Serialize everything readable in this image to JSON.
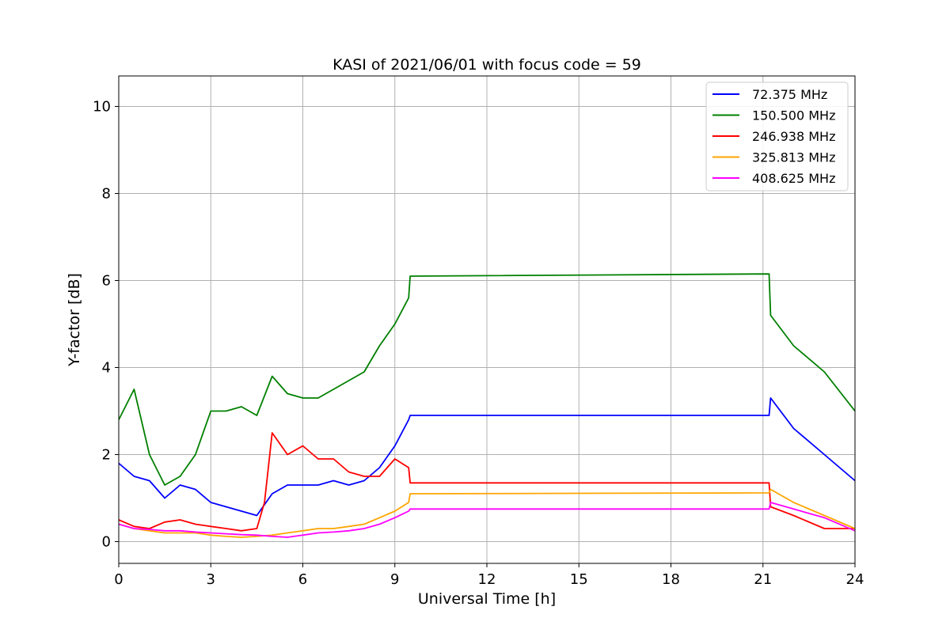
{
  "chart_data": {
    "type": "line",
    "title": "KASI of 2021/06/01 with focus code = 59",
    "xlabel": "Universal Time [h]",
    "ylabel": "Y-factor [dB]",
    "xlim": [
      0,
      24
    ],
    "ylim": [
      -0.5,
      10.7
    ],
    "xticks": [
      0,
      3,
      6,
      9,
      12,
      15,
      18,
      21,
      24
    ],
    "yticks": [
      0,
      2,
      4,
      6,
      8,
      10
    ],
    "grid": true,
    "legend_position": "top-right",
    "series": [
      {
        "name": " 72.375 MHz",
        "color": "#0000ff",
        "x": [
          0,
          0.5,
          1,
          1.5,
          2,
          2.5,
          3,
          3.5,
          4,
          4.5,
          5,
          5.5,
          6,
          6.5,
          7,
          7.5,
          8,
          8.5,
          9,
          9.45,
          9.5,
          21.2,
          21.25,
          22,
          23,
          24
        ],
        "y": [
          1.8,
          1.5,
          1.4,
          1.0,
          1.3,
          1.2,
          0.9,
          0.8,
          0.7,
          0.6,
          1.1,
          1.3,
          1.3,
          1.3,
          1.4,
          1.3,
          1.4,
          1.7,
          2.2,
          2.8,
          2.9,
          2.9,
          3.3,
          2.6,
          2.0,
          1.4
        ]
      },
      {
        "name": "150.500 MHz",
        "color": "#008000",
        "x": [
          0,
          0.5,
          1,
          1.5,
          2,
          2.5,
          3,
          3.5,
          4,
          4.5,
          5,
          5.5,
          6,
          6.5,
          7,
          7.5,
          8,
          8.5,
          9,
          9.45,
          9.5,
          21.2,
          21.25,
          22,
          23,
          24
        ],
        "y": [
          2.8,
          3.5,
          2.0,
          1.3,
          1.5,
          2.0,
          3.0,
          3.0,
          3.1,
          2.9,
          3.8,
          3.4,
          3.3,
          3.3,
          3.5,
          3.7,
          3.9,
          4.5,
          5.0,
          5.6,
          6.1,
          6.15,
          5.2,
          4.5,
          3.9,
          3.0
        ]
      },
      {
        "name": "246.938 MHz",
        "color": "#ff0000",
        "x": [
          0,
          0.5,
          1,
          1.5,
          2,
          2.5,
          3,
          3.5,
          4,
          4.5,
          4.75,
          5,
          5.5,
          6,
          6.5,
          7,
          7.5,
          8,
          8.5,
          9,
          9.45,
          9.5,
          21.2,
          21.25,
          22,
          23,
          24
        ],
        "y": [
          0.5,
          0.35,
          0.3,
          0.45,
          0.5,
          0.4,
          0.35,
          0.3,
          0.25,
          0.3,
          0.9,
          2.5,
          2.0,
          2.2,
          1.9,
          1.9,
          1.6,
          1.5,
          1.5,
          1.9,
          1.7,
          1.35,
          1.35,
          0.8,
          0.6,
          0.3,
          0.3
        ]
      },
      {
        "name": "325.813 MHz",
        "color": "#ffa500",
        "x": [
          0,
          0.5,
          1,
          1.5,
          2,
          2.5,
          3,
          3.5,
          4,
          4.5,
          5,
          5.5,
          6,
          6.5,
          7,
          7.5,
          8,
          8.5,
          9,
          9.45,
          9.5,
          21.2,
          21.25,
          22,
          23,
          24
        ],
        "y": [
          0.4,
          0.3,
          0.25,
          0.2,
          0.2,
          0.2,
          0.15,
          0.12,
          0.1,
          0.12,
          0.15,
          0.2,
          0.25,
          0.3,
          0.3,
          0.35,
          0.4,
          0.55,
          0.7,
          0.9,
          1.1,
          1.12,
          1.2,
          0.9,
          0.6,
          0.3
        ]
      },
      {
        "name": "408.625 MHz",
        "color": "#ff00ff",
        "x": [
          0,
          0.5,
          1,
          1.5,
          2,
          2.5,
          3,
          3.5,
          4,
          4.5,
          5,
          5.5,
          6,
          6.5,
          7,
          7.5,
          8,
          8.5,
          9,
          9.45,
          9.5,
          21.2,
          21.25,
          22,
          23,
          24
        ],
        "y": [
          0.4,
          0.3,
          0.28,
          0.25,
          0.25,
          0.22,
          0.2,
          0.18,
          0.16,
          0.15,
          0.12,
          0.1,
          0.15,
          0.2,
          0.22,
          0.25,
          0.3,
          0.4,
          0.55,
          0.7,
          0.75,
          0.75,
          0.9,
          0.75,
          0.55,
          0.25
        ]
      }
    ]
  }
}
